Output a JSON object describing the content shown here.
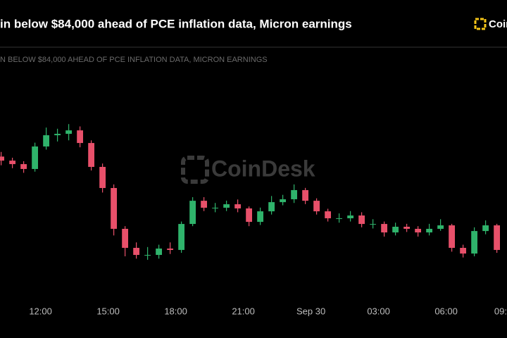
{
  "chart_data": {
    "type": "candlestick",
    "title": "in below $84,000 ahead of PCE inflation data, Micron earnings",
    "subtitle": "N BELOW $84,000 AHEAD OF PCE INFLATION DATA, MICRON EARNINGS",
    "brand": "Coin",
    "watermark": "CoinDesk",
    "up_color": "#2fb36b",
    "down_color": "#e8506a",
    "x": [
      10.25,
      10.75,
      11.25,
      11.75,
      12.25,
      12.75,
      13.25,
      13.75,
      14.25,
      14.75,
      15.25,
      15.75,
      16.25,
      16.75,
      17.25,
      17.75,
      18.25,
      18.75,
      19.25,
      19.75,
      20.25,
      20.75,
      21.25,
      21.75,
      22.25,
      22.75,
      23.25,
      23.75,
      24.25,
      24.75,
      25.25,
      25.75,
      26.25,
      26.75,
      27.25,
      27.75,
      28.25,
      28.75,
      29.25,
      29.75,
      30.25,
      30.75,
      31.25,
      31.75,
      32.25
    ],
    "open": [
      84300,
      84265,
      84235,
      84193,
      84387,
      84484,
      84496,
      84526,
      84417,
      84211,
      84029,
      83677,
      83513,
      83452,
      83452,
      83507,
      83495,
      83719,
      83919,
      83859,
      83859,
      83889,
      83853,
      83737,
      83828,
      83907,
      83932,
      84011,
      83919,
      83828,
      83768,
      83768,
      83792,
      83719,
      83719,
      83646,
      83695,
      83677,
      83646,
      83677,
      83707,
      83513,
      83464,
      83658,
      83707
    ],
    "close": [
      84265,
      84235,
      84193,
      84387,
      84484,
      84496,
      84526,
      84417,
      84211,
      84029,
      83677,
      83513,
      83452,
      83452,
      83507,
      83495,
      83719,
      83919,
      83859,
      83859,
      83889,
      83853,
      83737,
      83828,
      83907,
      83932,
      84011,
      83919,
      83828,
      83768,
      83768,
      83792,
      83719,
      83719,
      83646,
      83695,
      83677,
      83646,
      83677,
      83707,
      83513,
      83464,
      83658,
      83707,
      83495
    ],
    "high": [
      84340,
      84290,
      84260,
      84420,
      84550,
      84540,
      84580,
      84560,
      84440,
      84240,
      84060,
      83700,
      83560,
      83520,
      83540,
      83560,
      83740,
      83950,
      83950,
      83900,
      83920,
      83930,
      83870,
      83860,
      83960,
      83970,
      84060,
      84030,
      83940,
      83850,
      83810,
      83830,
      83820,
      83760,
      83740,
      83730,
      83720,
      83700,
      83720,
      83760,
      83720,
      83540,
      83690,
      83750,
      83720
    ],
    "low": [
      84225,
      84200,
      84160,
      84170,
      84360,
      84430,
      84440,
      84380,
      84180,
      83990,
      83620,
      83440,
      83420,
      83410,
      83420,
      83460,
      83470,
      83700,
      83830,
      83820,
      83830,
      83820,
      83700,
      83710,
      83800,
      83880,
      83900,
      83890,
      83800,
      83740,
      83730,
      83740,
      83690,
      83680,
      83610,
      83620,
      83650,
      83610,
      83620,
      83660,
      83480,
      83430,
      83440,
      83630,
      83470
    ],
    "xlim": [
      10.2,
      32.7
    ],
    "ylim": [
      83100,
      84800
    ],
    "xticks": [
      {
        "value": 12,
        "label": "12:00"
      },
      {
        "value": 15,
        "label": "15:00"
      },
      {
        "value": 18,
        "label": "18:00"
      },
      {
        "value": 21,
        "label": "21:00"
      },
      {
        "value": 24,
        "label": "Sep 30"
      },
      {
        "value": 27,
        "label": "03:00"
      },
      {
        "value": 30,
        "label": "06:00"
      },
      {
        "value": 32.7,
        "label": "09:"
      }
    ]
  }
}
